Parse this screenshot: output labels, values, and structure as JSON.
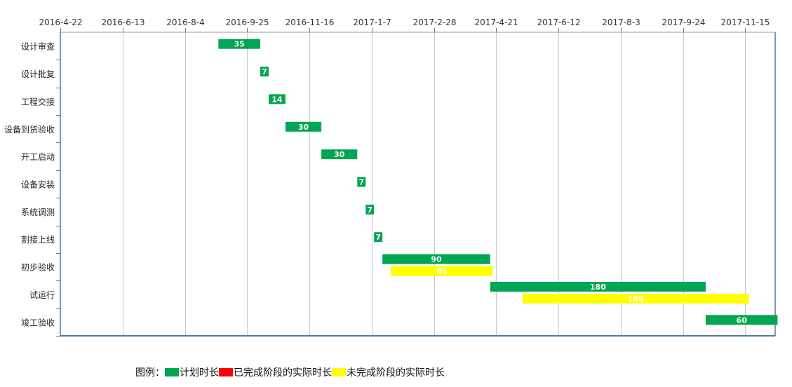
{
  "chart_data": {
    "type": "gantt",
    "x_ticks": [
      "2016-4-22",
      "2016-6-13",
      "2016-8-4",
      "2016-9-25",
      "2016-11-16",
      "2017-1-7",
      "2017-2-28",
      "2017-4-21",
      "2017-6-12",
      "2017-8-3",
      "2017-9-24",
      "2017-11-15"
    ],
    "x_range": [
      "2016-4-22",
      "2017-12-10"
    ],
    "grid": true,
    "tasks": [
      {
        "name": "设计审查",
        "bars": [
          {
            "series": "计划时长",
            "start": "2016-9-1",
            "duration": 35,
            "label": "35"
          }
        ]
      },
      {
        "name": "设计批复",
        "bars": [
          {
            "series": "计划时长",
            "start": "2016-10-6",
            "duration": 7,
            "label": "7"
          }
        ]
      },
      {
        "name": "工程交接",
        "bars": [
          {
            "series": "计划时长",
            "start": "2016-10-13",
            "duration": 14,
            "label": "14"
          }
        ]
      },
      {
        "name": "设备到货验收",
        "bars": [
          {
            "series": "计划时长",
            "start": "2016-10-27",
            "duration": 30,
            "label": "30"
          }
        ]
      },
      {
        "name": "开工启动",
        "bars": [
          {
            "series": "计划时长",
            "start": "2016-11-26",
            "duration": 30,
            "label": "30"
          }
        ]
      },
      {
        "name": "设备安装",
        "bars": [
          {
            "series": "计划时长",
            "start": "2016-12-26",
            "duration": 7,
            "label": "7"
          }
        ]
      },
      {
        "name": "系统调测",
        "bars": [
          {
            "series": "计划时长",
            "start": "2017-1-2",
            "duration": 7,
            "label": "7"
          }
        ]
      },
      {
        "name": "割接上线",
        "bars": [
          {
            "series": "计划时长",
            "start": "2017-1-9",
            "duration": 7,
            "label": "7"
          }
        ]
      },
      {
        "name": "初步验收",
        "bars": [
          {
            "series": "计划时长",
            "start": "2017-1-16",
            "duration": 90,
            "label": "90"
          },
          {
            "series": "未完成阶段的实际时长",
            "start": "2017-1-23",
            "duration": 85,
            "label": "85"
          }
        ]
      },
      {
        "name": "试运行",
        "bars": [
          {
            "series": "计划时长",
            "start": "2017-4-16",
            "duration": 180,
            "label": "180"
          },
          {
            "series": "未完成阶段的实际时长",
            "start": "2017-5-13",
            "duration": 189,
            "label": "189"
          }
        ]
      },
      {
        "name": "竣工验收",
        "bars": [
          {
            "series": "计划时长",
            "start": "2017-10-13",
            "duration": 60,
            "label": "60"
          }
        ]
      }
    ],
    "legend": {
      "title": "图例：",
      "placement": "bottom",
      "items": [
        {
          "name": "计划时长",
          "color": "#00a651"
        },
        {
          "name": "已完成阶段的实际时长",
          "color": "#ff0000"
        },
        {
          "name": "未完成阶段的实际时长",
          "color": "#ffff00"
        }
      ]
    },
    "colors": {
      "axis": "#4a7aa8",
      "grid": "#c8c8c8",
      "label_text": "#ffffff"
    }
  }
}
